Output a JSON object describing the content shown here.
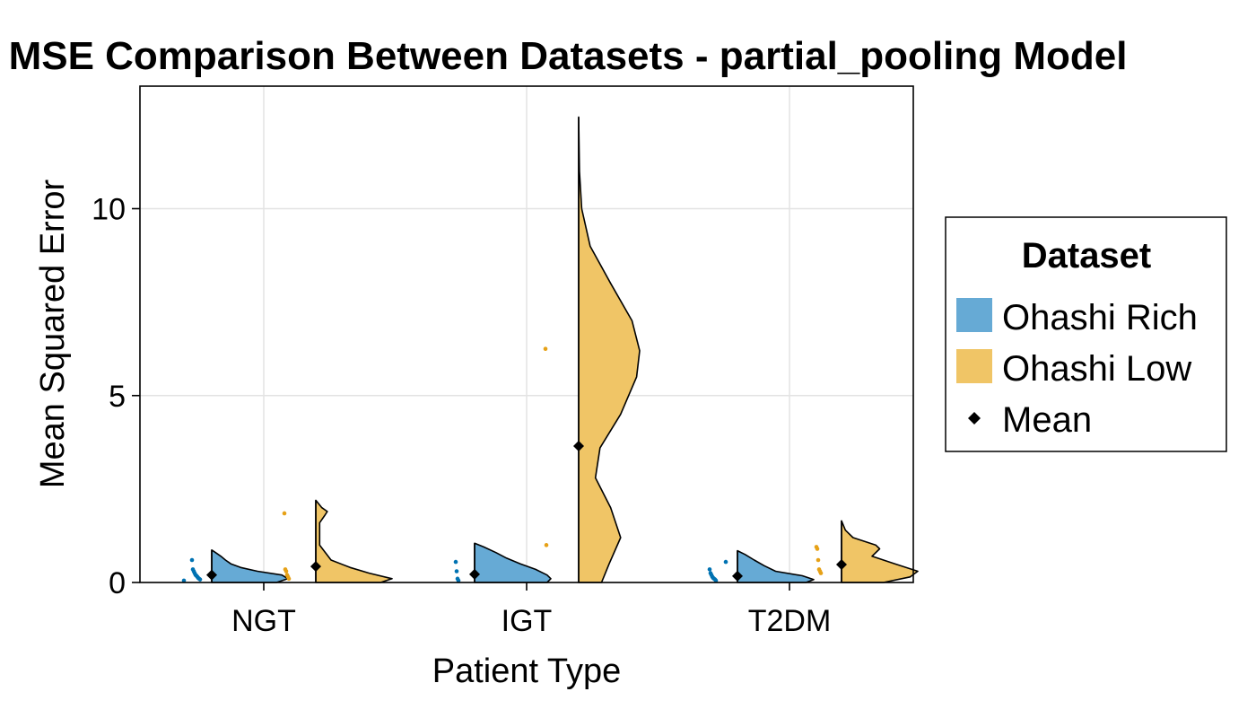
{
  "chart_data": {
    "type": "violin",
    "title": "MSE Comparison Between Datasets - partial_pooling Model",
    "xlabel": "Patient Type",
    "ylabel": "Mean Squared Error",
    "categories": [
      "NGT",
      "IGT",
      "T2DM"
    ],
    "ylim": [
      0,
      13.2
    ],
    "yticks": [
      "0",
      "5",
      "10"
    ],
    "ytick_values": [
      0,
      5,
      10
    ],
    "grid": true,
    "legend": {
      "title": "Dataset",
      "placement": "right",
      "items": [
        "Ohashi Rich",
        "Ohashi Low",
        "Mean"
      ]
    },
    "series": [
      {
        "name": "Ohashi Rich",
        "color": "#66aad5",
        "point_color": "#0072b2",
        "groups": [
          {
            "category": "NGT",
            "mean": 0.2,
            "max": 0.87,
            "density": [
              [
                0,
                0.85
              ],
              [
                0.1,
                1.0
              ],
              [
                0.2,
                0.92
              ],
              [
                0.3,
                0.6
              ],
              [
                0.4,
                0.38
              ],
              [
                0.5,
                0.25
              ],
              [
                0.6,
                0.18
              ],
              [
                0.7,
                0.12
              ],
              [
                0.8,
                0.05
              ],
              [
                0.87,
                0
              ]
            ],
            "points": [
              0.05,
              0.08,
              0.1,
              0.12,
              0.15,
              0.18,
              0.2,
              0.25,
              0.3,
              0.35,
              0.6
            ]
          },
          {
            "category": "IGT",
            "mean": 0.22,
            "max": 1.05,
            "density": [
              [
                0,
                0.95
              ],
              [
                0.1,
                1.0
              ],
              [
                0.2,
                0.95
              ],
              [
                0.35,
                0.8
              ],
              [
                0.5,
                0.6
              ],
              [
                0.65,
                0.42
              ],
              [
                0.8,
                0.28
              ],
              [
                0.95,
                0.12
              ],
              [
                1.05,
                0
              ]
            ],
            "points": [
              0.05,
              0.1,
              0.3,
              0.55
            ]
          },
          {
            "category": "T2DM",
            "mean": 0.17,
            "max": 0.85,
            "density": [
              [
                0,
                0.9
              ],
              [
                0.08,
                1.0
              ],
              [
                0.18,
                0.85
              ],
              [
                0.3,
                0.5
              ],
              [
                0.45,
                0.35
              ],
              [
                0.6,
                0.22
              ],
              [
                0.75,
                0.1
              ],
              [
                0.85,
                0
              ]
            ],
            "points": [
              0.05,
              0.08,
              0.1,
              0.12,
              0.15,
              0.2,
              0.25,
              0.35,
              0.55
            ]
          }
        ]
      },
      {
        "name": "Ohashi Low",
        "color": "#f0c566",
        "point_color": "#e6a117",
        "groups": [
          {
            "category": "NGT",
            "mean": 0.43,
            "max": 2.2,
            "density": [
              [
                0,
                0.85
              ],
              [
                0.1,
                1.0
              ],
              [
                0.25,
                0.7
              ],
              [
                0.4,
                0.45
              ],
              [
                0.6,
                0.2
              ],
              [
                1.0,
                0.05
              ],
              [
                1.6,
                0.05
              ],
              [
                1.8,
                0.12
              ],
              [
                1.9,
                0.15
              ],
              [
                2.0,
                0.08
              ],
              [
                2.2,
                0
              ]
            ],
            "points": [
              0.1,
              0.15,
              0.2,
              0.3,
              0.35,
              1.85
            ]
          },
          {
            "category": "IGT",
            "mean": 3.65,
            "max": 12.45,
            "density": [
              [
                0,
                0.3
              ],
              [
                0.5,
                0.4
              ],
              [
                1.2,
                0.55
              ],
              [
                2.0,
                0.42
              ],
              [
                2.8,
                0.22
              ],
              [
                3.6,
                0.28
              ],
              [
                4.5,
                0.55
              ],
              [
                5.5,
                0.76
              ],
              [
                6.2,
                0.8
              ],
              [
                7.0,
                0.7
              ],
              [
                8.0,
                0.42
              ],
              [
                9.0,
                0.15
              ],
              [
                10.0,
                0.04
              ],
              [
                11.0,
                0.01
              ],
              [
                12.45,
                0
              ]
            ],
            "points": [
              1.0,
              6.25
            ]
          },
          {
            "category": "T2DM",
            "mean": 0.48,
            "max": 1.65,
            "density": [
              [
                0,
                0.55
              ],
              [
                0.15,
                0.9
              ],
              [
                0.3,
                1.0
              ],
              [
                0.5,
                0.7
              ],
              [
                0.7,
                0.4
              ],
              [
                0.9,
                0.5
              ],
              [
                1.0,
                0.45
              ],
              [
                1.2,
                0.15
              ],
              [
                1.4,
                0.05
              ],
              [
                1.65,
                0
              ]
            ],
            "points": [
              0.25,
              0.3,
              0.35,
              0.6,
              0.9,
              0.95
            ]
          }
        ]
      }
    ],
    "mean_marker": {
      "color": "#000000",
      "shape": "diamond"
    }
  }
}
